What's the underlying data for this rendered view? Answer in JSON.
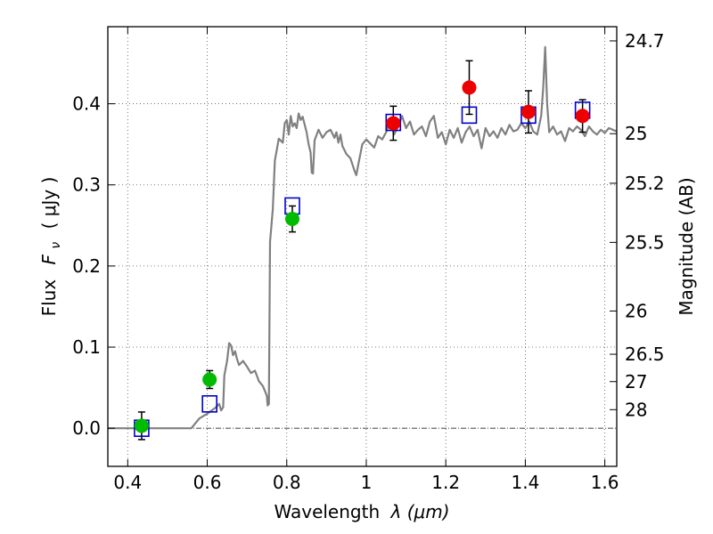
{
  "chart_data": {
    "type": "scatter",
    "xlabel_text": "Wavelength",
    "xlabel_math": "λ (μm)",
    "ylabel_text": "Flux",
    "ylabel_math": "F",
    "ylabel_sub": "ν",
    "ylabel_unit": "( μJy )",
    "y2label": "Magnitude (AB)",
    "xlim": [
      0.35,
      1.63
    ],
    "ylim": [
      -0.047,
      0.495
    ],
    "grid": true,
    "x_ticks": [
      0.4,
      0.6,
      0.8,
      1.0,
      1.2,
      1.4,
      1.6
    ],
    "x_tick_labels": [
      "0.4",
      "0.6",
      "0.8",
      "1",
      "1.2",
      "1.4",
      "1.6"
    ],
    "y_ticks": [
      0.0,
      0.1,
      0.2,
      0.3,
      0.4
    ],
    "y_tick_labels": [
      "0.0",
      "0.1",
      "0.2",
      "0.3",
      "0.4"
    ],
    "mag_ticks": [
      {
        "label": "24.7",
        "flux": 0.4775
      },
      {
        "label": "25",
        "flux": 0.3631
      },
      {
        "label": "25.2",
        "flux": 0.302
      },
      {
        "label": "25.5",
        "flux": 0.2291
      },
      {
        "label": "26",
        "flux": 0.1445
      },
      {
        "label": "26.5",
        "flux": 0.0912
      },
      {
        "label": "27",
        "flux": 0.0575
      },
      {
        "label": "28",
        "flux": 0.0229
      }
    ],
    "colors": {
      "model": "#808080",
      "green": "#00bb00",
      "red": "#ee0000",
      "box": "#0000cc",
      "error": "#000000",
      "grid": "#555555",
      "zero_line": "#000000"
    },
    "series": [
      {
        "marker": "circle",
        "color": "green",
        "points": [
          {
            "x": 0.435,
            "y": 0.003,
            "err": 0.017
          },
          {
            "x": 0.606,
            "y": 0.06,
            "err": 0.011
          },
          {
            "x": 0.814,
            "y": 0.258,
            "err": 0.016
          }
        ]
      },
      {
        "marker": "circle",
        "color": "red",
        "points": [
          {
            "x": 1.068,
            "y": 0.376,
            "err": 0.021
          },
          {
            "x": 1.259,
            "y": 0.42,
            "err": 0.033
          },
          {
            "x": 1.408,
            "y": 0.39,
            "err": 0.026
          },
          {
            "x": 1.544,
            "y": 0.385,
            "err": 0.02
          }
        ]
      },
      {
        "marker": "open-square",
        "color": "box",
        "points": [
          {
            "x": 0.435,
            "y": 0.0
          },
          {
            "x": 0.606,
            "y": 0.03
          },
          {
            "x": 0.814,
            "y": 0.274
          },
          {
            "x": 1.068,
            "y": 0.377
          },
          {
            "x": 1.259,
            "y": 0.386
          },
          {
            "x": 1.408,
            "y": 0.386
          },
          {
            "x": 1.544,
            "y": 0.392
          }
        ]
      }
    ],
    "model_spectrum": [
      [
        0.35,
        0.0
      ],
      [
        0.56,
        0.0
      ],
      [
        0.58,
        0.012
      ],
      [
        0.6,
        0.018
      ],
      [
        0.62,
        0.025
      ],
      [
        0.63,
        0.03
      ],
      [
        0.635,
        0.022
      ],
      [
        0.64,
        0.026
      ],
      [
        0.643,
        0.065
      ],
      [
        0.65,
        0.083
      ],
      [
        0.655,
        0.105
      ],
      [
        0.66,
        0.102
      ],
      [
        0.665,
        0.09
      ],
      [
        0.67,
        0.095
      ],
      [
        0.675,
        0.085
      ],
      [
        0.68,
        0.078
      ],
      [
        0.69,
        0.083
      ],
      [
        0.7,
        0.076
      ],
      [
        0.71,
        0.068
      ],
      [
        0.72,
        0.071
      ],
      [
        0.73,
        0.058
      ],
      [
        0.74,
        0.052
      ],
      [
        0.745,
        0.046
      ],
      [
        0.75,
        0.04
      ],
      [
        0.752,
        0.028
      ],
      [
        0.755,
        0.03
      ],
      [
        0.758,
        0.23
      ],
      [
        0.765,
        0.27
      ],
      [
        0.77,
        0.33
      ],
      [
        0.78,
        0.357
      ],
      [
        0.79,
        0.352
      ],
      [
        0.795,
        0.376
      ],
      [
        0.8,
        0.38
      ],
      [
        0.805,
        0.362
      ],
      [
        0.81,
        0.385
      ],
      [
        0.815,
        0.372
      ],
      [
        0.82,
        0.376
      ],
      [
        0.825,
        0.37
      ],
      [
        0.83,
        0.388
      ],
      [
        0.835,
        0.38
      ],
      [
        0.84,
        0.384
      ],
      [
        0.85,
        0.365
      ],
      [
        0.855,
        0.35
      ],
      [
        0.86,
        0.34
      ],
      [
        0.863,
        0.315
      ],
      [
        0.866,
        0.314
      ],
      [
        0.87,
        0.355
      ],
      [
        0.88,
        0.368
      ],
      [
        0.89,
        0.358
      ],
      [
        0.9,
        0.365
      ],
      [
        0.91,
        0.368
      ],
      [
        0.92,
        0.358
      ],
      [
        0.925,
        0.365
      ],
      [
        0.93,
        0.352
      ],
      [
        0.935,
        0.362
      ],
      [
        0.94,
        0.348
      ],
      [
        0.95,
        0.338
      ],
      [
        0.96,
        0.333
      ],
      [
        0.97,
        0.318
      ],
      [
        0.975,
        0.312
      ],
      [
        0.98,
        0.325
      ],
      [
        0.99,
        0.35
      ],
      [
        1.0,
        0.356
      ],
      [
        1.01,
        0.351
      ],
      [
        1.02,
        0.346
      ],
      [
        1.03,
        0.36
      ],
      [
        1.04,
        0.356
      ],
      [
        1.05,
        0.365
      ],
      [
        1.06,
        0.38
      ],
      [
        1.07,
        0.362
      ],
      [
        1.08,
        0.372
      ],
      [
        1.09,
        0.385
      ],
      [
        1.1,
        0.37
      ],
      [
        1.11,
        0.378
      ],
      [
        1.12,
        0.362
      ],
      [
        1.13,
        0.368
      ],
      [
        1.14,
        0.372
      ],
      [
        1.15,
        0.36
      ],
      [
        1.16,
        0.378
      ],
      [
        1.17,
        0.385
      ],
      [
        1.18,
        0.358
      ],
      [
        1.19,
        0.365
      ],
      [
        1.2,
        0.35
      ],
      [
        1.21,
        0.368
      ],
      [
        1.22,
        0.358
      ],
      [
        1.23,
        0.37
      ],
      [
        1.24,
        0.352
      ],
      [
        1.25,
        0.365
      ],
      [
        1.26,
        0.372
      ],
      [
        1.27,
        0.36
      ],
      [
        1.28,
        0.368
      ],
      [
        1.29,
        0.345
      ],
      [
        1.3,
        0.37
      ],
      [
        1.31,
        0.36
      ],
      [
        1.32,
        0.366
      ],
      [
        1.33,
        0.358
      ],
      [
        1.34,
        0.37
      ],
      [
        1.35,
        0.362
      ],
      [
        1.36,
        0.374
      ],
      [
        1.37,
        0.366
      ],
      [
        1.38,
        0.368
      ],
      [
        1.39,
        0.376
      ],
      [
        1.4,
        0.37
      ],
      [
        1.41,
        0.378
      ],
      [
        1.42,
        0.366
      ],
      [
        1.43,
        0.362
      ],
      [
        1.44,
        0.385
      ],
      [
        1.445,
        0.42
      ],
      [
        1.45,
        0.47
      ],
      [
        1.455,
        0.4
      ],
      [
        1.46,
        0.365
      ],
      [
        1.47,
        0.372
      ],
      [
        1.48,
        0.362
      ],
      [
        1.49,
        0.366
      ],
      [
        1.5,
        0.354
      ],
      [
        1.51,
        0.37
      ],
      [
        1.52,
        0.366
      ],
      [
        1.53,
        0.372
      ],
      [
        1.54,
        0.368
      ],
      [
        1.55,
        0.36
      ],
      [
        1.56,
        0.372
      ],
      [
        1.57,
        0.366
      ],
      [
        1.58,
        0.362
      ],
      [
        1.59,
        0.368
      ],
      [
        1.6,
        0.364
      ],
      [
        1.61,
        0.37
      ],
      [
        1.62,
        0.368
      ],
      [
        1.63,
        0.366
      ]
    ]
  }
}
